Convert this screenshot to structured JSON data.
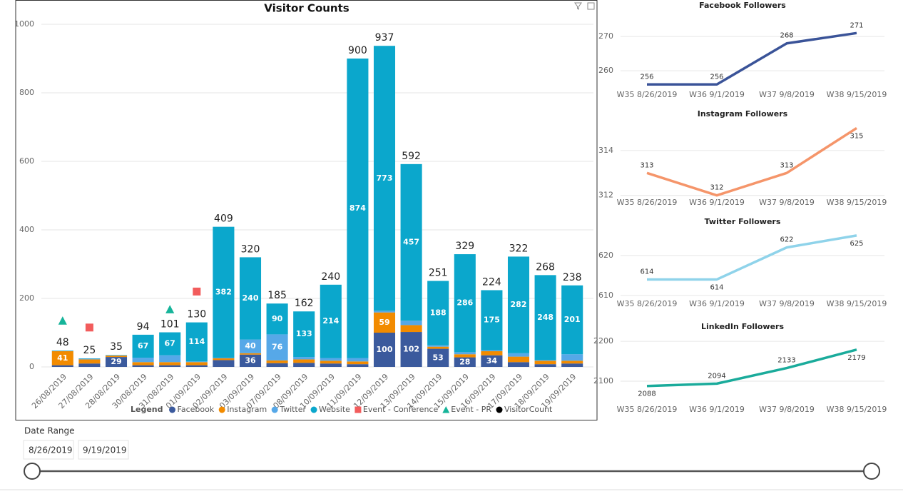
{
  "chart_data": [
    {
      "type": "bar",
      "title": "Visitor Counts",
      "categories": [
        "26/08/2019",
        "27/08/2019",
        "28/08/2019",
        "30/08/2019",
        "31/08/2019",
        "01/09/2019",
        "02/09/2019",
        "03/09/2019",
        "07/09/2019",
        "08/09/2019",
        "10/09/2019",
        "11/09/2019",
        "12/09/2019",
        "13/09/2019",
        "14/09/2019",
        "15/09/2019",
        "16/09/2019",
        "17/09/2019",
        "18/09/2019",
        "19/09/2019"
      ],
      "series": [
        {
          "name": "Facebook",
          "color": "#3b5a9d",
          "values": [
            5,
            10,
            29,
            5,
            5,
            5,
            20,
            36,
            11,
            12,
            10,
            8,
            100,
            102,
            53,
            28,
            34,
            14,
            8,
            10
          ]
        },
        {
          "name": "Instagram",
          "color": "#f28b00",
          "values": [
            41,
            12,
            4,
            9,
            9,
            9,
            5,
            4,
            8,
            10,
            8,
            8,
            59,
            20,
            6,
            9,
            12,
            16,
            10,
            8
          ]
        },
        {
          "name": "Twitter",
          "color": "#56a8e8",
          "values": [
            1,
            2,
            1,
            13,
            20,
            2,
            2,
            40,
            76,
            7,
            8,
            10,
            5,
            13,
            4,
            6,
            3,
            10,
            2,
            19
          ]
        },
        {
          "name": "Website",
          "color": "#0ba7cc",
          "values": [
            1,
            1,
            1,
            67,
            67,
            114,
            382,
            240,
            90,
            133,
            214,
            874,
            773,
            457,
            188,
            286,
            175,
            282,
            248,
            201
          ]
        }
      ],
      "totals": {
        "name": "VisitorCount",
        "color": "#000000",
        "values": [
          48,
          25,
          35,
          94,
          101,
          130,
          409,
          320,
          185,
          162,
          240,
          900,
          937,
          592,
          251,
          329,
          224,
          322,
          268,
          238
        ]
      },
      "events": [
        {
          "name": "Event - Conference",
          "color": "#f25c5c",
          "marker": "square",
          "values": [
            null,
            115,
            null,
            null,
            null,
            220,
            null,
            null,
            null,
            null,
            null,
            null,
            null,
            null,
            null,
            null,
            null,
            null,
            null,
            null
          ]
        },
        {
          "name": "Event - PR",
          "color": "#16b49a",
          "marker": "triangle",
          "values": [
            135,
            null,
            null,
            null,
            168,
            null,
            null,
            null,
            null,
            null,
            null,
            null,
            null,
            null,
            null,
            null,
            null,
            null,
            null,
            null
          ]
        }
      ],
      "legend_title": "Legend",
      "ylim": [
        0,
        1025
      ],
      "yticks": [
        0,
        200,
        400,
        600,
        800,
        1000
      ],
      "grid": true
    },
    {
      "type": "line",
      "title": "Facebook Followers",
      "categories": [
        "W35 8/26/2019",
        "W36 9/1/2019",
        "W37 9/8/2019",
        "W38 9/15/2019"
      ],
      "values": [
        256,
        256,
        268,
        271
      ],
      "color": "#3a5398",
      "ylim": [
        254.6,
        274.4
      ],
      "yticks": [
        260,
        270
      ],
      "grid": true
    },
    {
      "type": "line",
      "title": "Instagram Followers",
      "categories": [
        "W35 8/26/2019",
        "W36 9/1/2019",
        "W37 9/8/2019",
        "W38 9/15/2019"
      ],
      "values": [
        313,
        312,
        313,
        315
      ],
      "color": "#f5956a",
      "ylim": [
        311.8,
        315.3
      ],
      "yticks": [
        312,
        314
      ],
      "grid": true
    },
    {
      "type": "line",
      "title": "Twitter Followers",
      "categories": [
        "W35 8/26/2019",
        "W36 9/1/2019",
        "W37 9/8/2019",
        "W38 9/15/2019"
      ],
      "values": [
        614,
        614,
        622,
        625
      ],
      "color": "#8fd3ea",
      "ylim": [
        608.9,
        626.4
      ],
      "yticks": [
        610,
        620
      ],
      "grid": true
    },
    {
      "type": "line",
      "title": "LinkedIn Followers",
      "categories": [
        "W35 8/26/2019",
        "W36 9/1/2019",
        "W37 9/8/2019",
        "W38 9/15/2019"
      ],
      "values": [
        2088,
        2094,
        2133,
        2179
      ],
      "color": "#1aab9b",
      "ylim": [
        2050,
        2218
      ],
      "yticks": [
        2100,
        2200
      ],
      "grid": true
    }
  ],
  "slicer": {
    "title": "Date Range",
    "start": "8/26/2019",
    "end": "9/19/2019"
  }
}
